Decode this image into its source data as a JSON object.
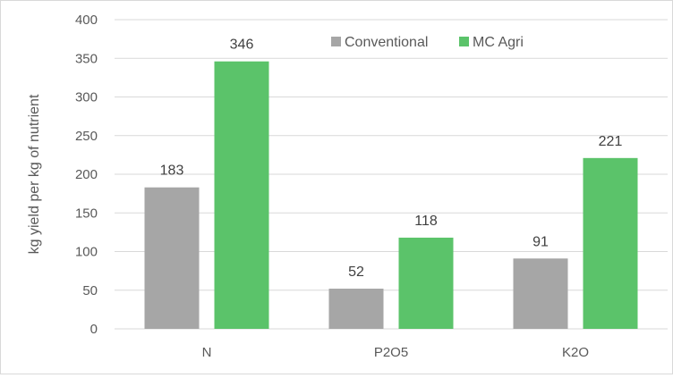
{
  "chart_data": {
    "type": "bar",
    "title": "",
    "xlabel": "",
    "ylabel": "kg yield per kg of nutrient",
    "categories": [
      "N",
      "P2O5",
      "K2O"
    ],
    "ylim": [
      0,
      400
    ],
    "yticks": [
      0,
      50,
      100,
      150,
      200,
      250,
      300,
      350,
      400
    ],
    "grid": true,
    "legend_position": "top-right",
    "series": [
      {
        "name": "Conventional",
        "color": "#A6A6A6",
        "values": [
          183,
          52,
          91
        ]
      },
      {
        "name": "MC Agri",
        "color": "#5BC36A",
        "values": [
          346,
          118,
          221
        ]
      }
    ]
  }
}
